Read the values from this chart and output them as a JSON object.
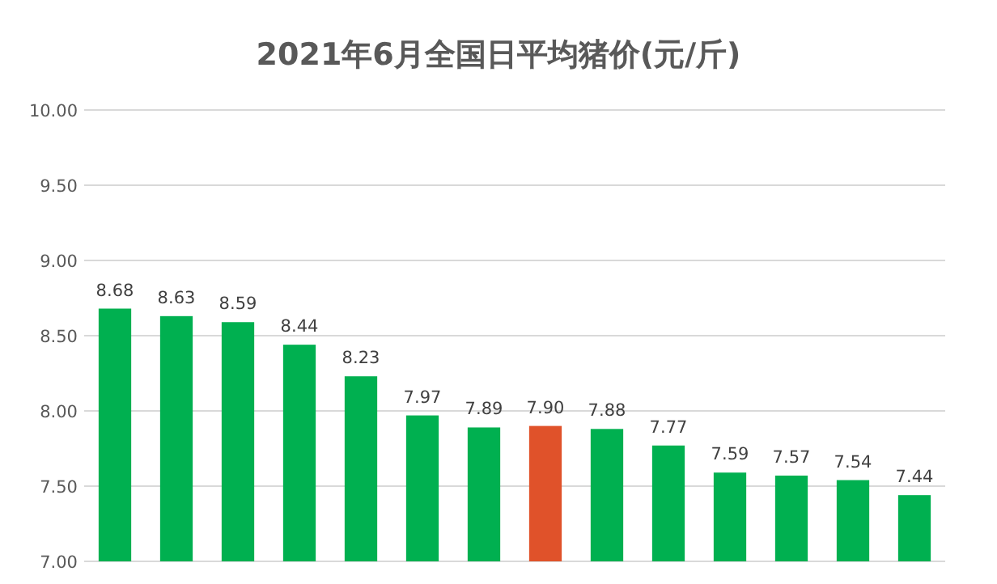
{
  "chart_data": {
    "type": "bar",
    "title": "2021年6月全国日平均猪价(元/斤)",
    "categories": [
      null,
      null,
      null,
      null,
      null,
      null,
      null,
      null,
      null,
      null,
      null,
      null,
      null,
      null
    ],
    "values": [
      8.68,
      8.63,
      8.59,
      8.44,
      8.23,
      7.97,
      7.89,
      7.9,
      7.88,
      7.77,
      7.59,
      7.57,
      7.54,
      7.44
    ],
    "value_labels": [
      "8.68",
      "8.63",
      "8.59",
      "8.44",
      "8.23",
      "7.97",
      "7.89",
      "7.90",
      "7.88",
      "7.77",
      "7.59",
      "7.57",
      "7.54",
      "7.44"
    ],
    "colors": [
      "#00b050",
      "#00b050",
      "#00b050",
      "#00b050",
      "#00b050",
      "#00b050",
      "#00b050",
      "#e0522a",
      "#00b050",
      "#00b050",
      "#00b050",
      "#00b050",
      "#00b050",
      "#00b050"
    ],
    "ylim": [
      7,
      10
    ],
    "yticks": [
      {
        "value": 7,
        "label": "7.00"
      },
      {
        "value": 7.5,
        "label": "7.50"
      },
      {
        "value": 8,
        "label": "8.00"
      },
      {
        "value": 8.5,
        "label": "8.50"
      },
      {
        "value": 9,
        "label": "9.00"
      },
      {
        "value": 9.5,
        "label": "9.50"
      },
      {
        "value": 10,
        "label": "10.00"
      }
    ],
    "grid": "y"
  }
}
